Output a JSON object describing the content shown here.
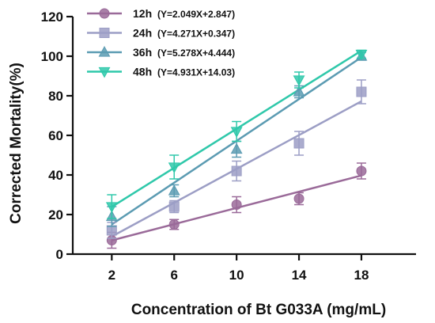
{
  "chart_data": {
    "type": "scatter",
    "xlabel": "Concentration of Bt G033A (mg/mL)",
    "ylabel": "Corrected Mortality(%)",
    "xticks": [
      2,
      6,
      10,
      14,
      18
    ],
    "yticks": [
      0,
      20,
      40,
      60,
      80,
      100,
      120
    ],
    "ylim": [
      0,
      120
    ],
    "xlim": [
      -0.5,
      21.5
    ],
    "legend_position": "top-left",
    "grid": false,
    "series": [
      {
        "name": "12h",
        "equation": "(Y=2.049X+2.847)",
        "slope": 2.049,
        "intercept": 2.847,
        "marker": "circle",
        "color": "#9a6a99",
        "x": [
          2,
          6,
          10,
          14,
          18
        ],
        "y": [
          7,
          15,
          25,
          28,
          42
        ],
        "err": [
          4,
          2.5,
          4,
          3,
          4
        ]
      },
      {
        "name": "24h",
        "equation": "(Y=4.271X+0.347)",
        "slope": 4.271,
        "intercept": 0.347,
        "marker": "square",
        "color": "#9c9ec5",
        "x": [
          2,
          6,
          10,
          14,
          18
        ],
        "y": [
          12,
          24,
          42,
          56,
          82
        ],
        "err": [
          4,
          3,
          5,
          6,
          6
        ]
      },
      {
        "name": "36h",
        "equation": "(Y=5.278X+4.444)",
        "slope": 5.278,
        "intercept": 4.444,
        "marker": "triangle-up",
        "color": "#5b9bb2",
        "x": [
          2,
          6,
          10,
          14,
          18
        ],
        "y": [
          19,
          32,
          53,
          82,
          100
        ],
        "err": [
          5,
          3,
          4,
          3,
          2
        ]
      },
      {
        "name": "48h",
        "equation": "(Y=4.931X+14.03)",
        "slope": 4.931,
        "intercept": 14.03,
        "marker": "triangle-down",
        "color": "#2fc8aa",
        "x": [
          2,
          6,
          10,
          14,
          18
        ],
        "y": [
          24,
          44,
          62,
          88,
          101
        ],
        "err": [
          6,
          6,
          5,
          4,
          2
        ]
      }
    ]
  }
}
